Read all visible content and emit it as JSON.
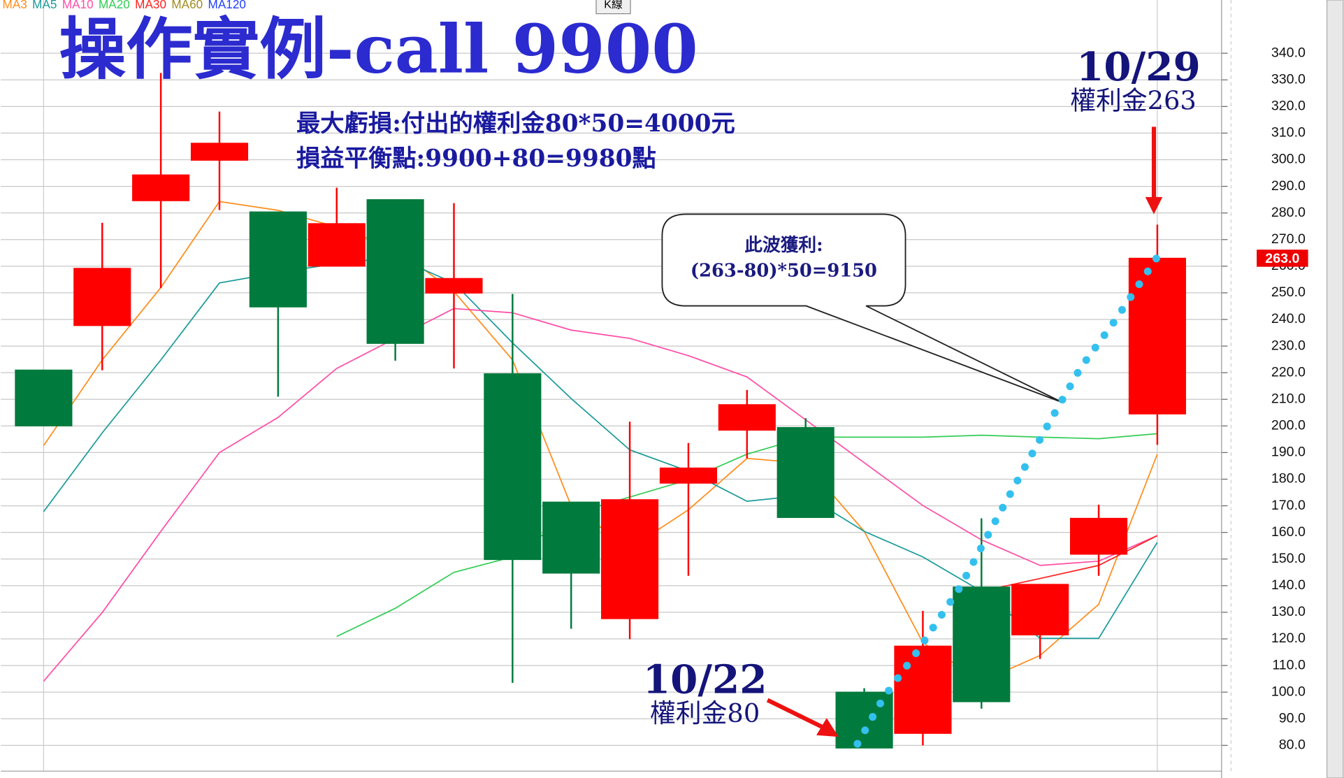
{
  "chart_data": {
    "type": "candlestick",
    "title": "操作實例-call 9900",
    "indicator_label": "K線",
    "notes": [
      "最大虧損:付出的權利金80*50=4000元",
      "損益平衡點:9900+80=9980點"
    ],
    "callout": [
      "此波獲利:",
      "(263-80)*50=9150"
    ],
    "annotations": [
      {
        "date": "10/22",
        "text": "權利金80"
      },
      {
        "date": "10/29",
        "text": "權利金263"
      }
    ],
    "candles": {
      "open": [
        221,
        237.7,
        284.6,
        299.8,
        280.4,
        260,
        285,
        249.9,
        219.6,
        171.4,
        127.6,
        178.5,
        198.4,
        199.4,
        100,
        84.5,
        139.5,
        121.5,
        151.8,
        204.5
      ],
      "high": [
        221,
        276.3,
        332.6,
        318.1,
        280.4,
        289.5,
        285,
        283.7,
        249.6,
        171.4,
        201.6,
        193.6,
        213.5,
        202.9,
        101.5,
        130.5,
        165.3,
        140.5,
        170.4,
        275.6
      ],
      "low": [
        200,
        220.9,
        251.8,
        281.1,
        211,
        260,
        224.5,
        221.6,
        103.5,
        123.8,
        119.9,
        143.7,
        187.8,
        165.6,
        79,
        80,
        93.8,
        112.5,
        143.7,
        192.9
      ],
      "close": [
        200,
        259.2,
        294.3,
        306.2,
        244.7,
        276,
        231,
        255.4,
        149.8,
        144.7,
        172.3,
        184.2,
        208,
        165.6,
        79,
        117.3,
        96.4,
        140.5,
        165.3,
        263
      ]
    },
    "up_color": "#ff0000",
    "down_color": "#007a3d",
    "last_price": {
      "value": 263,
      "label": "263.0"
    },
    "ma_series": [
      {
        "name": "MA3",
        "color": "#ff8c1a",
        "values": [
          192.6,
          224.8,
          252,
          284.3,
          281,
          274.7,
          266.6,
          250.5,
          224.8,
          170,
          154,
          168.5,
          187.8,
          186,
          160.4,
          118.6,
          104,
          113.8,
          133,
          189.4
        ]
      },
      {
        "name": "MA5",
        "color": "#1a9a9a",
        "values": [
          167.8,
          197.4,
          224.8,
          253.7,
          257.6,
          261,
          263.4,
          253.7,
          231.2,
          210.3,
          191,
          183,
          171.7,
          174,
          160.4,
          150.8,
          137.9,
          120.2,
          120.2,
          156.3
        ]
      },
      {
        "name": "MA10",
        "color": "#ff4da6",
        "values": [
          104.1,
          129.9,
          160.4,
          190,
          203.2,
          221.6,
          232.9,
          244.1,
          242.5,
          236,
          232.9,
          226.4,
          218.4,
          202.3,
          186.2,
          170.1,
          157.2,
          147.6,
          149.2,
          158.8
        ]
      },
      {
        "name": "MA20",
        "color": "#33cc55",
        "values": [
          null,
          null,
          null,
          null,
          null,
          120.9,
          131.5,
          145,
          150.8,
          166.9,
          173.3,
          179.8,
          189.4,
          195.8,
          195.8,
          195.8,
          196.5,
          195.8,
          195.2,
          197.1
        ]
      },
      {
        "name": "MA30",
        "color": "#ff2020",
        "values": [
          null,
          null,
          null,
          null,
          null,
          null,
          null,
          null,
          null,
          null,
          null,
          null,
          null,
          null,
          null,
          null,
          137.9,
          142.7,
          147.6,
          158.8
        ]
      },
      {
        "name": "MA60",
        "color": "#a08c20",
        "values": [
          null,
          null,
          null,
          null,
          null,
          null,
          null,
          null,
          null,
          null,
          null,
          null,
          null,
          null,
          null,
          null,
          null,
          null,
          null,
          null
        ]
      },
      {
        "name": "MA120",
        "color": "#2040ff",
        "values": [
          null,
          null,
          null,
          null,
          null,
          null,
          null,
          null,
          null,
          null,
          null,
          null,
          null,
          null,
          null,
          null,
          null,
          null,
          null,
          null
        ]
      }
    ],
    "ylim": [
      70,
      360
    ],
    "yticks": [
      {
        "value": 80,
        "label": "80.0"
      },
      {
        "value": 90,
        "label": "90.0"
      },
      {
        "value": 100,
        "label": "100.0"
      },
      {
        "value": 110,
        "label": "110.0"
      },
      {
        "value": 120,
        "label": "120.0"
      },
      {
        "value": 130,
        "label": "130.0"
      },
      {
        "value": 140,
        "label": "140.0"
      },
      {
        "value": 150,
        "label": "150.0"
      },
      {
        "value": 160,
        "label": "160.0"
      },
      {
        "value": 170,
        "label": "170.0"
      },
      {
        "value": 180,
        "label": "180.0"
      },
      {
        "value": 190,
        "label": "190.0"
      },
      {
        "value": 200,
        "label": "200.0"
      },
      {
        "value": 210,
        "label": "210.0"
      },
      {
        "value": 220,
        "label": "220.0"
      },
      {
        "value": 230,
        "label": "230.0"
      },
      {
        "value": 240,
        "label": "240.0"
      },
      {
        "value": 250,
        "label": "250.0"
      },
      {
        "value": 260,
        "label": "260.0"
      },
      {
        "value": 270,
        "label": "270.0"
      },
      {
        "value": 280,
        "label": "280.0"
      },
      {
        "value": 290,
        "label": "290.0"
      },
      {
        "value": 300,
        "label": "300.0"
      },
      {
        "value": 310,
        "label": "310.0"
      },
      {
        "value": 320,
        "label": "320.0"
      },
      {
        "value": 330,
        "label": "330.0"
      },
      {
        "value": 340,
        "label": "340.0"
      }
    ],
    "grid": true
  }
}
